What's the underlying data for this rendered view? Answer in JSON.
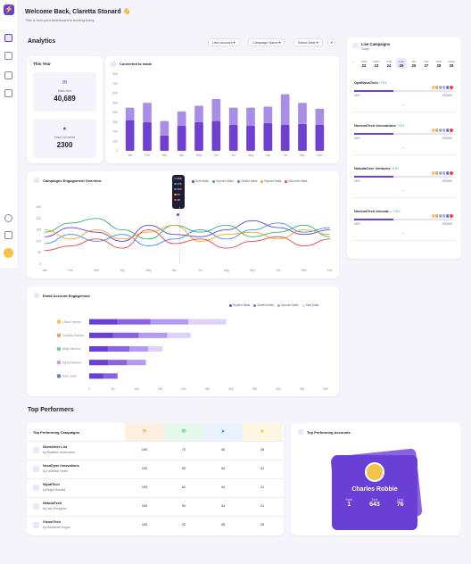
{
  "header": {
    "welcome": "Welcome Back, Claretta Stonard",
    "emoji": "👋",
    "subtitle": "This is how your dashboard is looking today"
  },
  "analytics": {
    "title": "Analytics",
    "filters": [
      "User Account",
      "Campaign Name",
      "Select Date"
    ]
  },
  "this_year": {
    "label": "This Year",
    "mails_sent_label": "Mails Sent",
    "mails_sent_value": "40,689",
    "lead_converted_label": "Lead Converted",
    "lead_converted_value": "2300"
  },
  "converted_chart": {
    "title": "Converted to leads",
    "chart_data": {
      "type": "bar",
      "categories": [
        "Jan",
        "Feb",
        "Mar",
        "Apr",
        "May",
        "Jun",
        "Jul",
        "Aug",
        "Sep",
        "Oct",
        "Nov",
        "Dec"
      ],
      "ylim": [
        0,
        800
      ],
      "yticks": [
        "800",
        "700",
        "600",
        "500",
        "400",
        "300",
        "200",
        "100",
        "0"
      ],
      "series": [
        {
          "values": [
            320,
            300,
            160,
            260,
            300,
            310,
            270,
            260,
            290,
            270,
            280,
            270
          ]
        },
        {
          "values": [
            130,
            200,
            150,
            150,
            170,
            230,
            180,
            190,
            170,
            320,
            220,
            170
          ]
        }
      ]
    }
  },
  "engagement": {
    "title": "Campaigns Engagement Overview",
    "legend": [
      "Sent Mails",
      "Opened Mails",
      "Clicked Mails",
      "Replied Mails",
      "Bounced Mails"
    ],
    "legend_colors": [
      "#6a3fd6",
      "#2bb673",
      "#3b8ff0",
      "#f5a623",
      "#e8454a"
    ],
    "tooltip": [
      "250",
      "176",
      "103",
      "93",
      "18"
    ],
    "chart_data": {
      "type": "line",
      "x": [
        "Jan",
        "Feb",
        "Mar",
        "Apr",
        "May",
        "Jun",
        "Jul",
        "Aug",
        "Sep",
        "Oct",
        "Nov",
        "Dec"
      ],
      "ylim": [
        0,
        250
      ],
      "yticks": [
        "250",
        "200",
        "150",
        "100",
        "50",
        "0"
      ],
      "series": [
        {
          "values": [
            120,
            160,
            140,
            100,
            170,
            130,
            120,
            150,
            190,
            160,
            130,
            150
          ]
        },
        {
          "values": [
            140,
            180,
            200,
            150,
            110,
            170,
            140,
            170,
            120,
            140,
            170,
            120
          ]
        },
        {
          "values": [
            90,
            130,
            100,
            130,
            80,
            110,
            150,
            110,
            150,
            180,
            140,
            160
          ]
        },
        {
          "values": [
            150,
            110,
            150,
            110,
            140,
            170,
            100,
            130,
            140,
            110,
            150,
            130
          ]
        },
        {
          "values": [
            60,
            80,
            110,
            70,
            150,
            90,
            110,
            70,
            100,
            120,
            80,
            110
          ]
        }
      ]
    }
  },
  "email_engagement": {
    "title": "Email Account Engagement",
    "legend": [
      "Replied Mails",
      "Clicked Mails",
      "Opened Mails",
      "Sent Mails"
    ],
    "chart_data": {
      "type": "bar",
      "orientation": "horizontal",
      "categories": [
        "Lillian Harman",
        "Claretta Stonard",
        "Abby Stevens",
        "Agnes Bertom",
        "Sam Lente"
      ],
      "xticks": [
        "0",
        "50",
        "100",
        "150",
        "200",
        "250",
        "300",
        "350",
        "400",
        "450",
        "500"
      ],
      "series": [
        {
          "values": [
            60,
            50,
            40,
            40,
            30
          ]
        },
        {
          "values": [
            70,
            55,
            45,
            40,
            30
          ]
        },
        {
          "values": [
            80,
            60,
            40,
            40,
            0
          ]
        },
        {
          "values": [
            80,
            50,
            30,
            0,
            0
          ]
        }
      ]
    }
  },
  "live_campaigns": {
    "title": "Live Campaigns",
    "subtitle": "Today",
    "days": [
      {
        "d": "SUN",
        "n": "22"
      },
      {
        "d": "MON",
        "n": "23"
      },
      {
        "d": "TUE",
        "n": "24"
      },
      {
        "d": "THU",
        "n": "25"
      },
      {
        "d": "FRI",
        "n": "26"
      },
      {
        "d": "SAT",
        "n": "27"
      },
      {
        "d": "SUN",
        "n": "28"
      },
      {
        "d": "MON",
        "n": "29"
      }
    ],
    "items": [
      {
        "name": "OptiNovaTech",
        "badge": "+78%",
        "pct": "40%",
        "count": "200/500"
      },
      {
        "name": "NovexaTech Innovations",
        "badge": "+18%",
        "pct": "40%",
        "count": "200/500"
      },
      {
        "name": "NebulaCore Ventures",
        "badge": "+51%",
        "pct": "40%",
        "count": "200/500"
      },
      {
        "name": "NovexaTech Innovat...",
        "badge": "+16%",
        "pct": "40%",
        "count": "200/500"
      }
    ]
  },
  "top_performers": {
    "title": "Top Performers",
    "table_title": "Top Performing Campaigns",
    "rows": [
      {
        "name": "Newsletter List",
        "by": "by Madeline Undermann",
        "v": [
          "100",
          "72",
          "45",
          "25"
        ]
      },
      {
        "name": "NexaDyne Innovations",
        "by": "by Lauranne Heale",
        "v": [
          "100",
          "53",
          "44",
          "31"
        ]
      },
      {
        "name": "WyattTech",
        "by": "by Bright Randell",
        "v": [
          "100",
          "62",
          "44",
          "21"
        ]
      },
      {
        "name": "NebulaTech",
        "by": "by Lalo D'eregorio",
        "v": [
          "100",
          "94",
          "34",
          "21"
        ]
      },
      {
        "name": "VisionTech",
        "by": "by Maurienne Dogan",
        "v": [
          "100",
          "72",
          "45",
          "25"
        ]
      }
    ],
    "accounts_title": "Top Performing Accounts",
    "account": {
      "name": "Charles Robbie",
      "stats": [
        {
          "label": "Rank",
          "value": "1"
        },
        {
          "label": "Sent",
          "value": "643"
        },
        {
          "label": "Lead",
          "value": "76"
        }
      ]
    }
  }
}
